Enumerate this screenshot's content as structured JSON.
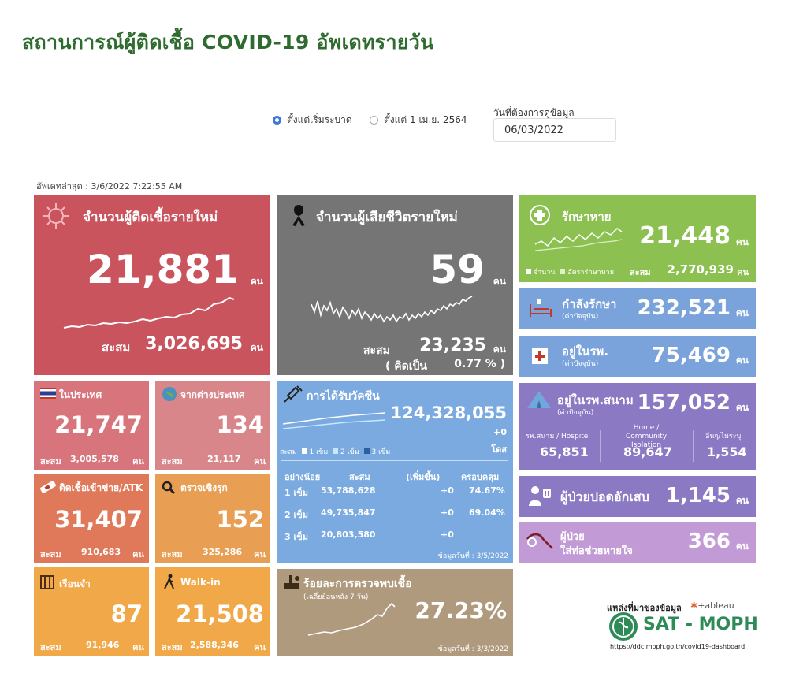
{
  "header": {
    "title": "สถานการณ์ผู้ติดเชื้อ COVID-19 อัพเดทรายวัน"
  },
  "filters": {
    "option1": "ตั้งแต่เริ่มระบาด",
    "option2": "ตั้งแต่ 1 เม.ย. 2564",
    "date_label": "วันที่ต้องการดูข้อมูล",
    "date_value": "06/03/2022"
  },
  "updated": "อัพเดทล่าสุด : 3/6/2022 7:22:55 AM",
  "unit": "คน",
  "cum_label": "สะสม",
  "new_cases": {
    "title": "จำนวนผู้ติดเชื้อรายใหม่",
    "value": "21,881",
    "cumulative": "3,026,695"
  },
  "deaths": {
    "title": "จำนวนผู้เสียชีวิตรายใหม่",
    "value": "59",
    "cumulative": "23,235",
    "pct_label": "( คิดเป็น",
    "pct_value": "0.77 % )"
  },
  "recovered": {
    "title": "รักษาหาย",
    "value": "21,448",
    "legend1": "จำนวน",
    "legend2": "อัตรารักษาหาย",
    "cumulative": "2,770,939"
  },
  "treating": {
    "title": "กำลังรักษา",
    "sub": "(ค่าปัจจุบัน)",
    "value": "232,521"
  },
  "hospital": {
    "title": "อยู่ในรพ.",
    "sub": "(ค่าปัจจุบัน)",
    "value": "75,469"
  },
  "domestic": {
    "title": "ในประเทศ",
    "value": "21,747",
    "cumulative": "3,005,578"
  },
  "abroad": {
    "title": "จากต่างประเทศ",
    "value": "134",
    "cumulative": "21,117"
  },
  "prison": {
    "title": "ติดเชื้อเข้าข่าย/ATK",
    "value": "31,407",
    "cumulative": "910,683"
  },
  "proactive": {
    "title": "ตรวจเชิงรุก",
    "value": "152",
    "cumulative": "325,286"
  },
  "jail": {
    "title": "เรือนจำ",
    "value": "87",
    "cumulative": "91,946"
  },
  "walkin": {
    "title": "Walk-in",
    "value": "21,508",
    "cumulative": "2,588,346"
  },
  "vaccine": {
    "title": "การได้รับวัคซีน",
    "total": "124,328,055",
    "delta": "+0",
    "unit": "โดส",
    "legend_cum": "สะสม",
    "legend1": "1 เข็ม",
    "legend2": "2 เข็ม",
    "legend3": "3 เข็ม",
    "headers": [
      "อย่างน้อย",
      "สะสม",
      "(เพิ่มขึ้น)",
      "ครอบคลุม"
    ],
    "rows": [
      {
        "dose": "1 เข็ม",
        "cum": "53,788,628",
        "inc": "+0",
        "cov": "74.67%"
      },
      {
        "dose": "2 เข็ม",
        "cum": "49,735,847",
        "inc": "+0",
        "cov": "69.04%"
      },
      {
        "dose": "3 เข็ม",
        "cum": "20,803,580",
        "inc": "+0",
        "cov": ""
      }
    ],
    "note": "ข้อมูลวันที่ : 3/5/2022"
  },
  "positivity": {
    "title": "ร้อยละการตรวจพบเชื้อ",
    "sub": "(เฉลี่ยย้อนหลัง 7 วัน)",
    "value": "27.23%",
    "note": "ข้อมูลวันที่ : 3/3/2022"
  },
  "field_hospital": {
    "title": "อยู่ในรพ.สนาม",
    "sub": "(ค่าปัจจุบัน)",
    "value": "157,052",
    "cols": [
      {
        "label": "รพ.สนาม / Hospitel",
        "value": "65,851"
      },
      {
        "label": "Home / Community Isolation",
        "value": "89,647"
      },
      {
        "label": "อื่นๆ/ไม่ระบุ",
        "value": "1,554"
      }
    ]
  },
  "pneumonia": {
    "title": "ผู้ป่วยปอดอักเสบ",
    "value": "1,145"
  },
  "ventilator": {
    "title": "ผู้ป่วย",
    "title2": "ใส่ท่อช่วยหายใจ",
    "value": "366"
  },
  "source": {
    "label": "แหล่งที่มาของข้อมูล",
    "tableau": "+ableau",
    "brand": "SAT - MOPH",
    "url": "https://ddc.moph.go.th/covid19-dashboard"
  },
  "colors": {
    "cases": "#c9545e",
    "deaths": "#757575",
    "recovered": "#8cc152",
    "blue": "#7aa3dc",
    "purple": "#8b79c4",
    "orange": "#e89e53",
    "tan": "#b09a7e",
    "green_title": "#2e6b2e"
  }
}
